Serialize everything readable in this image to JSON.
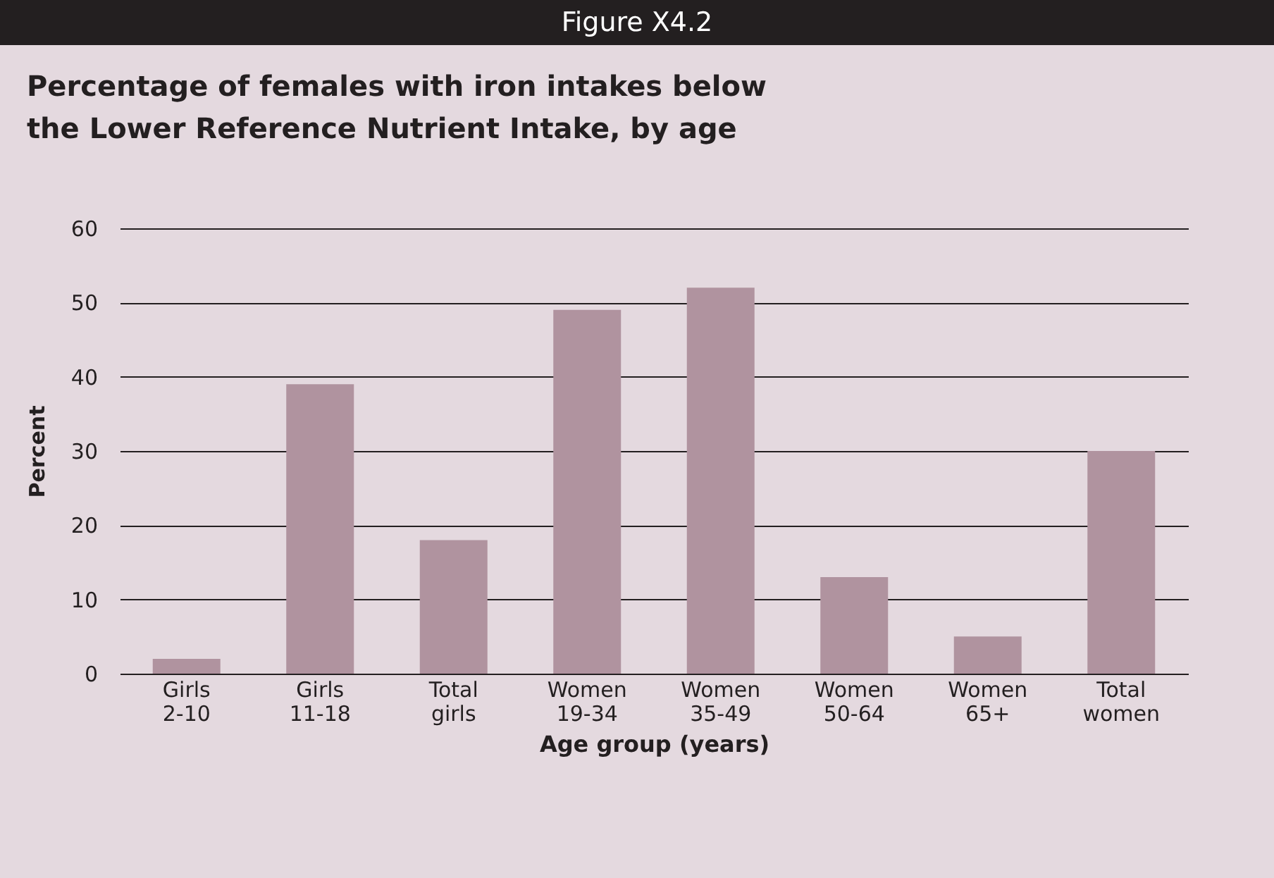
{
  "chart_data": {
    "type": "bar",
    "title": "Percentage of females with iron intakes below the Lower Reference Nutrient Intake, by age",
    "annotations": [
      "Figure X4.2"
    ],
    "xlabel": "Age group (years)",
    "ylabel": "Percent",
    "categories": [
      "Girls 2-10",
      "Girls 11-18",
      "Total girls",
      "Women 19-34",
      "Women 35-49",
      "Women 50-64",
      "Women 65+",
      "Total women"
    ],
    "values": [
      2,
      39,
      18,
      49,
      52,
      13,
      5,
      30
    ],
    "color": "#b0939f",
    "ylim": [
      0,
      60
    ],
    "yticks": [
      0,
      10,
      20,
      30,
      40,
      50,
      60
    ],
    "grid": "y"
  }
}
